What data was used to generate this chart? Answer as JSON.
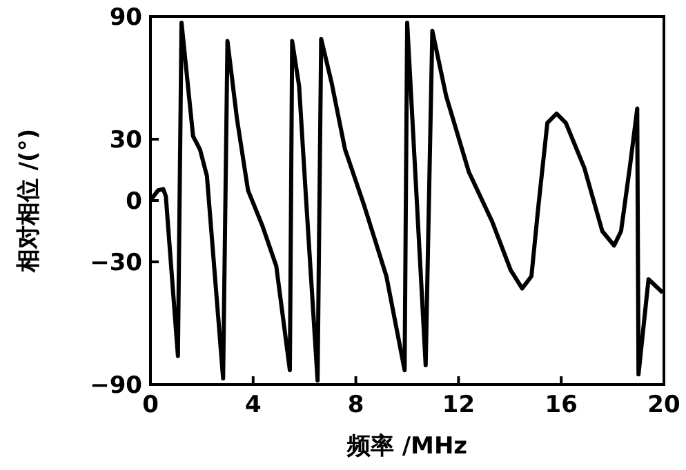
{
  "chart_data": {
    "type": "line",
    "xlabel": "频率 /MHz",
    "ylabel": "相对相位 /(°)",
    "xlim": [
      0,
      20
    ],
    "ylim": [
      -90,
      90
    ],
    "xticks": [
      0,
      4,
      8,
      12,
      16,
      20
    ],
    "yticks": [
      -90,
      -30,
      0,
      30,
      90
    ],
    "grid": false,
    "marker": "none",
    "line_style": "solid",
    "series": [
      {
        "color": "#000000",
        "x": [
          0.05,
          0.3,
          0.5,
          0.6,
          1.07,
          1.21,
          1.66,
          1.93,
          2.2,
          2.83,
          3.0,
          3.37,
          3.8,
          4.35,
          4.9,
          5.43,
          5.52,
          5.79,
          6.06,
          6.51,
          6.65,
          7.05,
          7.58,
          8.3,
          9.19,
          9.9,
          10.0,
          10.72,
          10.98,
          11.52,
          12.4,
          13.3,
          14.03,
          14.48,
          14.84,
          15.1,
          15.46,
          15.82,
          16.18,
          16.9,
          17.6,
          18.06,
          18.33,
          18.69,
          18.96,
          19.01,
          19.4,
          19.95
        ],
        "values": [
          1,
          5,
          5.6,
          2,
          -76,
          87,
          31.5,
          25,
          12,
          -87,
          78,
          40,
          5,
          -12,
          -32,
          -83,
          78,
          56,
          1,
          -88,
          79,
          58,
          25,
          -1.5,
          -37,
          -83,
          87,
          -80.5,
          83,
          51,
          14,
          -10,
          -34,
          -43,
          -37,
          -4,
          38,
          42.5,
          38,
          16,
          -15,
          -22,
          -15,
          18,
          45,
          -85,
          -38.5,
          -45
        ]
      }
    ]
  }
}
